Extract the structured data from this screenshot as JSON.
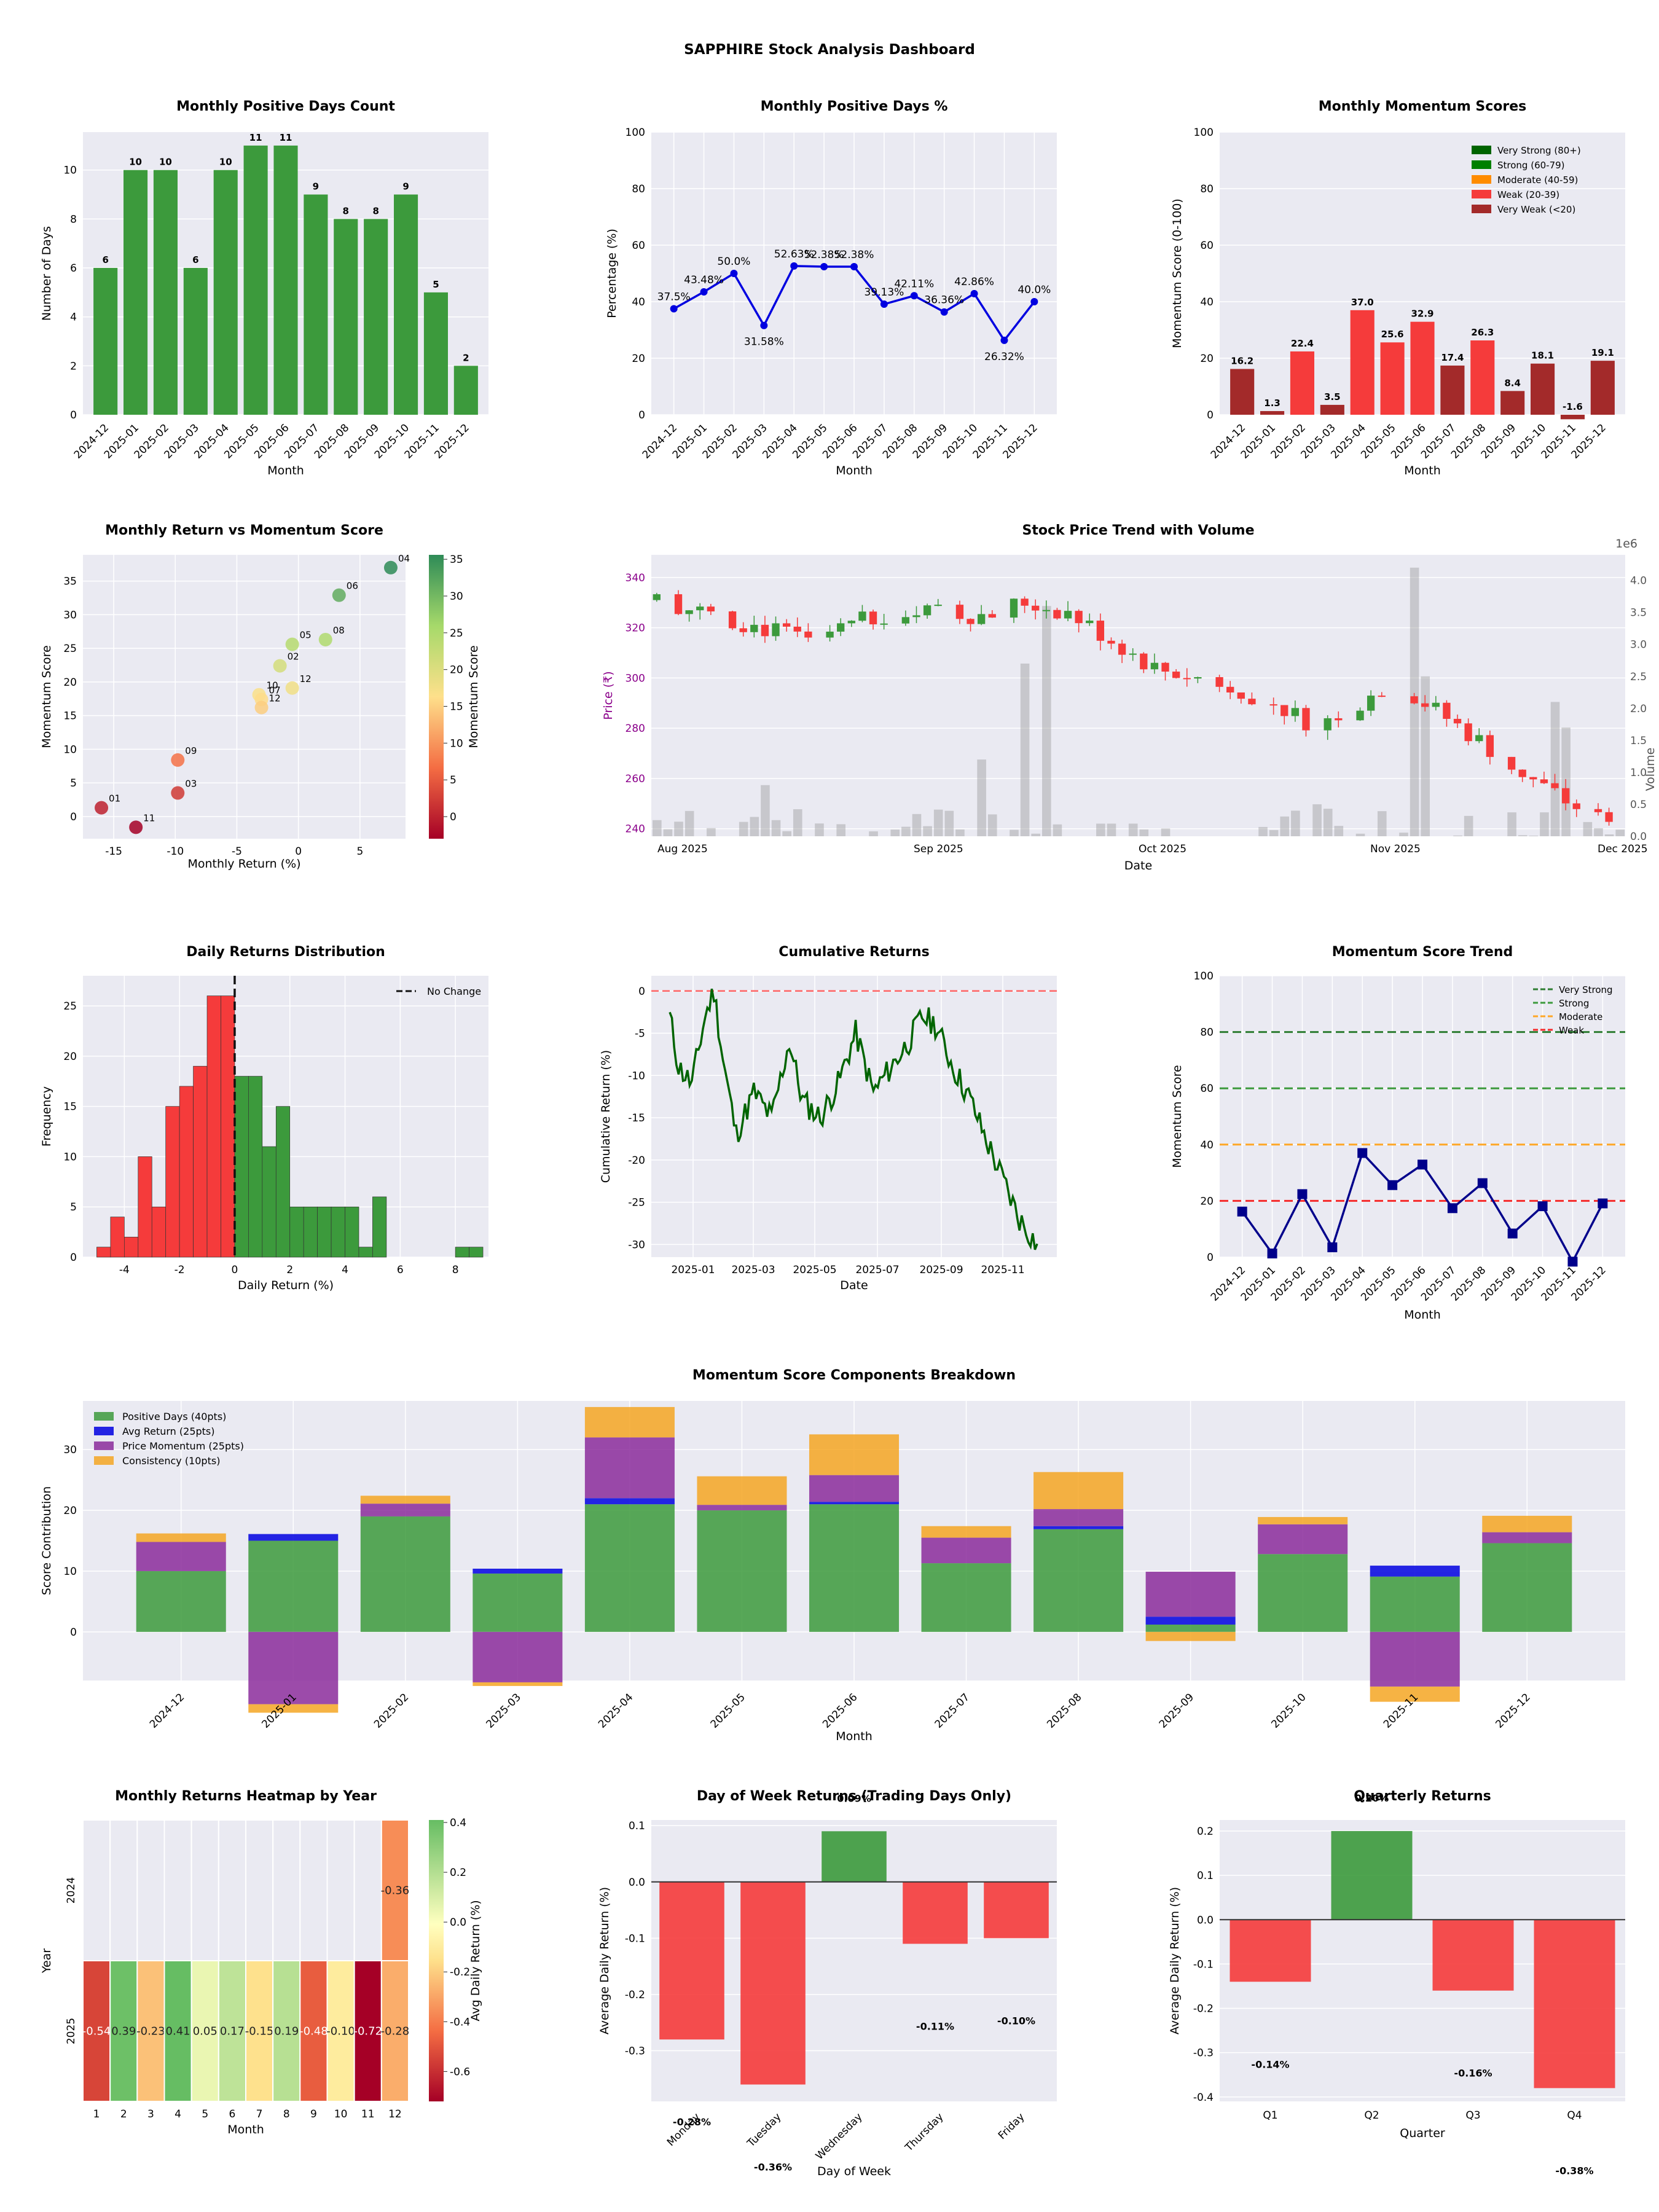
{
  "title": "SAPPHIRE Stock Analysis Dashboard",
  "months": [
    "2024-12",
    "2025-01",
    "2025-02",
    "2025-03",
    "2025-04",
    "2025-05",
    "2025-06",
    "2025-07",
    "2025-08",
    "2025-09",
    "2025-10",
    "2025-11",
    "2025-12"
  ],
  "colors": {
    "plot_bg": "#eaeaf2",
    "green": "#3c9a3c",
    "red": "#f53b3b",
    "blue": "#0000e0",
    "dark_red": "#a32a2a",
    "navy": "#00008b",
    "purple": "#8b008b",
    "orange": "#f5a623",
    "strong_green": "#006400",
    "moderate_orange": "#ff8c00"
  },
  "chart_data": [
    {
      "id": "pos_days",
      "type": "bar",
      "title": "Monthly Positive Days Count",
      "xlabel": "Month",
      "ylabel": "Number of Days",
      "values": [
        6,
        10,
        10,
        6,
        10,
        11,
        11,
        9,
        8,
        8,
        9,
        5,
        2
      ],
      "ylim": [
        0,
        11.55
      ],
      "yticks": [
        "0",
        "2",
        "4",
        "6",
        "8",
        "10"
      ]
    },
    {
      "id": "pos_pct",
      "type": "line",
      "title": "Monthly Positive Days %",
      "xlabel": "Month",
      "ylabel": "Percentage (%)",
      "values": [
        37.5,
        43.48,
        50.0,
        31.58,
        52.63,
        52.38,
        52.38,
        39.13,
        42.11,
        36.36,
        42.86,
        26.32,
        40.0
      ],
      "labels": [
        "37.5%",
        "43.48%",
        "50.0%",
        "31.58%",
        "52.63%",
        "52.38%",
        "52.38%",
        "39.13%",
        "42.11%",
        "36.36%",
        "42.86%",
        "26.32%",
        "40.0%"
      ],
      "ylim": [
        0,
        100
      ],
      "yticks": [
        "0",
        "20",
        "40",
        "60",
        "80",
        "100"
      ]
    },
    {
      "id": "momentum",
      "type": "bar",
      "title": "Monthly Momentum Scores",
      "xlabel": "Month",
      "ylabel": "Momentum Score (0-100)",
      "values": [
        16.2,
        1.3,
        22.4,
        3.5,
        37.0,
        25.6,
        32.9,
        17.4,
        26.3,
        8.4,
        18.1,
        -1.6,
        19.1
      ],
      "labels": [
        "16.2",
        "1.3",
        "22.4",
        "3.5",
        "37.0",
        "25.6",
        "32.9",
        "17.4",
        "26.3",
        "8.4",
        "18.1",
        "-1.6",
        "19.1"
      ],
      "ylim": [
        0,
        100
      ],
      "yticks": [
        "0",
        "20",
        "40",
        "60",
        "80",
        "100"
      ],
      "legend": [
        "Very Strong (80+)",
        "Strong (60-79)",
        "Moderate (40-59)",
        "Weak (20-39)",
        "Very Weak (<20)"
      ],
      "legend_position": "top-right"
    },
    {
      "id": "scatter",
      "type": "scatter",
      "title": "Monthly Return vs Momentum Score",
      "xlabel": "Monthly Return (%)",
      "ylabel": "Momentum Score",
      "colorbar_label": "Momentum Score",
      "points": [
        {
          "x": -16.0,
          "y": 1.3,
          "label": "01"
        },
        {
          "x": -9.8,
          "y": 8.4,
          "label": "09"
        },
        {
          "x": -9.8,
          "y": 3.5,
          "label": "03"
        },
        {
          "x": -13.2,
          "y": -1.6,
          "label": "11"
        },
        {
          "x": -3.2,
          "y": 18.1,
          "label": "10"
        },
        {
          "x": -3.0,
          "y": 17.4,
          "label": "07"
        },
        {
          "x": -3.0,
          "y": 16.2,
          "label": "12"
        },
        {
          "x": -1.5,
          "y": 22.4,
          "label": "02"
        },
        {
          "x": -0.5,
          "y": 19.1,
          "label": "12"
        },
        {
          "x": -0.5,
          "y": 25.6,
          "label": "05"
        },
        {
          "x": 2.2,
          "y": 26.3,
          "label": "08"
        },
        {
          "x": 3.3,
          "y": 32.9,
          "label": "06"
        },
        {
          "x": 7.5,
          "y": 37.0,
          "label": "04"
        }
      ],
      "xlim": [
        -17.5,
        8.7
      ],
      "ylim": [
        -3.3,
        38.9
      ],
      "xticks": [
        "-15",
        "-10",
        "-5",
        "0",
        "5"
      ],
      "yticks": [
        "0",
        "5",
        "10",
        "15",
        "20",
        "25",
        "30",
        "35"
      ]
    },
    {
      "id": "candles",
      "type": "candlestick",
      "title": "Stock Price Trend with Volume",
      "xlabel": "Date",
      "ylabel": "Price (₹)",
      "y2label": "Volume",
      "y2_offset": "1e6",
      "ylim": [
        237,
        349
      ],
      "y2lim": [
        0,
        4.4
      ],
      "yticks": [
        "240",
        "260",
        "280",
        "300",
        "320",
        "340"
      ],
      "y2ticks": [
        "0.0",
        "0.5",
        "1.0",
        "1.5",
        "2.0",
        "2.5",
        "3.0",
        "3.5",
        "4.0"
      ],
      "xticks": [
        "Aug 2025",
        "Sep 2025",
        "Oct 2025",
        "Nov 2025",
        "Dec 2025"
      ]
    },
    {
      "id": "hist",
      "type": "bar",
      "title": "Daily Returns Distribution",
      "xlabel": "Daily Return (%)",
      "ylabel": "Frequency",
      "legend": [
        "No Change"
      ],
      "legend_position": "top-right",
      "bins_left": [
        -5.0,
        -4.5,
        -4.0,
        -3.5,
        -3.0,
        -2.5,
        -2.0,
        -1.5,
        -1.0,
        -0.5,
        0.0,
        0.5,
        1.0,
        1.5,
        2.0,
        2.5,
        3.0,
        3.5,
        4.0,
        4.5,
        5.0,
        5.5,
        6.0,
        6.5,
        7.0,
        7.5,
        8.0,
        8.5
      ],
      "counts": [
        1,
        4,
        2,
        10,
        5,
        15,
        17,
        19,
        26,
        26,
        18,
        18,
        11,
        15,
        5,
        5,
        5,
        5,
        5,
        1,
        6,
        0,
        0,
        0,
        0,
        0,
        1,
        1
      ],
      "bin_width": 0.5,
      "xlim": [
        -5.5,
        9.2
      ],
      "ylim": [
        0,
        28
      ],
      "xticks": [
        "-4",
        "-2",
        "0",
        "2",
        "4",
        "6",
        "8"
      ],
      "yticks": [
        "0",
        "5",
        "10",
        "15",
        "20",
        "25"
      ]
    },
    {
      "id": "cum",
      "type": "line",
      "title": "Cumulative Returns",
      "xlabel": "Date",
      "ylabel": "Cumulative Return (%)",
      "ylim": [
        -31.5,
        1.8
      ],
      "yticks": [
        "0",
        "-5",
        "-10",
        "-15",
        "-20",
        "-25",
        "-30"
      ],
      "xticks": [
        "2025-01",
        "2025-03",
        "2025-05",
        "2025-07",
        "2025-09",
        "2025-11"
      ]
    },
    {
      "id": "trend",
      "type": "line",
      "title": "Momentum Score Trend",
      "xlabel": "Month",
      "ylabel": "Momentum Score",
      "values": [
        16.2,
        1.3,
        22.4,
        3.5,
        37.0,
        25.6,
        32.9,
        17.4,
        26.3,
        8.4,
        18.1,
        -1.6,
        19.1
      ],
      "thresholds": [
        80,
        60,
        40,
        20
      ],
      "legend": [
        "Very Strong",
        "Strong",
        "Moderate",
        "Weak"
      ],
      "legend_position": "top-right",
      "ylim": [
        0,
        100
      ],
      "yticks": [
        "0",
        "20",
        "40",
        "60",
        "80",
        "100"
      ]
    },
    {
      "id": "components",
      "type": "bar",
      "title": "Momentum Score Components Breakdown",
      "xlabel": "Month",
      "ylabel": "Score Contribution",
      "legend": [
        "Positive Days (40pts)",
        "Avg Return (25pts)",
        "Price Momentum (25pts)",
        "Consistency (10pts)"
      ],
      "legend_position": "top-left",
      "series": [
        {
          "name": "Positive Days (40pts)",
          "values": [
            10,
            15,
            19,
            9.6,
            21,
            20,
            21,
            11.3,
            16.9,
            1.2,
            12.8,
            9.1,
            14.6
          ]
        },
        {
          "name": "Avg Return (25pts)",
          "values": [
            0,
            1.1,
            0,
            0.8,
            1.0,
            0,
            0.4,
            0,
            0.5,
            1.3,
            0,
            1.8,
            0
          ]
        },
        {
          "name": "Price Momentum (25pts)",
          "values": [
            4.8,
            -11.9,
            2.1,
            -8.3,
            10,
            0.9,
            4.4,
            4.2,
            2.8,
            7.4,
            4.9,
            -9.0,
            1.8
          ]
        },
        {
          "name": "Consistency (10pts)",
          "values": [
            1.4,
            -1.4,
            1.3,
            -0.6,
            5.0,
            4.7,
            6.7,
            1.9,
            6.1,
            -1.5,
            1.2,
            -2.5,
            2.7
          ]
        }
      ],
      "ylim": [
        -8,
        38
      ],
      "yticks": [
        "0",
        "10",
        "20",
        "30"
      ]
    },
    {
      "id": "heatmap",
      "type": "heatmap",
      "title": "Monthly Returns Heatmap by Year",
      "xlabel": "Month",
      "ylabel": "Year",
      "colorbar_label": "Avg Daily Return (%)",
      "rows": [
        "2024",
        "2025"
      ],
      "cols": [
        "1",
        "2",
        "3",
        "4",
        "5",
        "6",
        "7",
        "8",
        "9",
        "10",
        "11",
        "12"
      ],
      "cells": [
        [
          null,
          null,
          null,
          null,
          null,
          null,
          null,
          null,
          null,
          null,
          null,
          -0.36
        ],
        [
          -0.54,
          0.39,
          -0.23,
          0.41,
          0.05,
          0.17,
          -0.15,
          0.19,
          -0.48,
          -0.1,
          -0.72,
          -0.28
        ]
      ],
      "cell_labels": [
        [
          "",
          "",
          "",
          "",
          "",
          "",
          "",
          "",
          "",
          "",
          "",
          "-0.36"
        ],
        [
          "-0.54",
          "0.39",
          "-0.23",
          "0.41",
          "0.05",
          "0.17",
          "-0.15",
          "0.19",
          "-0.48",
          "-0.10",
          "-0.72",
          "-0.28"
        ]
      ],
      "vlim": [
        -0.72,
        0.41
      ],
      "colorbar_ticks": [
        "0.4",
        "0.2",
        "0.0",
        "-0.2",
        "-0.4",
        "-0.6"
      ]
    },
    {
      "id": "dow",
      "type": "bar",
      "title": "Day of Week Returns (Trading Days Only)",
      "xlabel": "Day of Week",
      "ylabel": "Average Daily Return (%)",
      "categories": [
        "Monday",
        "Tuesday",
        "Wednesday",
        "Thursday",
        "Friday"
      ],
      "values": [
        -0.28,
        -0.36,
        0.09,
        -0.11,
        -0.1
      ],
      "labels": [
        "-0.28%",
        "-0.36%",
        "0.09%",
        "-0.11%",
        "-0.10%"
      ],
      "ylim": [
        -0.39,
        0.11
      ],
      "yticks": [
        "0.1",
        "0.0",
        "-0.1",
        "-0.2",
        "-0.3"
      ]
    },
    {
      "id": "quarter",
      "type": "bar",
      "title": "Quarterly Returns",
      "xlabel": "Quarter",
      "ylabel": "Average Daily Return (%)",
      "categories": [
        "Q1",
        "Q2",
        "Q3",
        "Q4"
      ],
      "values": [
        -0.14,
        0.2,
        -0.16,
        -0.38
      ],
      "labels": [
        "-0.14%",
        "0.20%",
        "-0.16%",
        "-0.38%"
      ],
      "ylim": [
        -0.41,
        0.225
      ],
      "yticks": [
        "0.2",
        "0.1",
        "0.0",
        "-0.1",
        "-0.2",
        "-0.3",
        "-0.4"
      ]
    }
  ]
}
